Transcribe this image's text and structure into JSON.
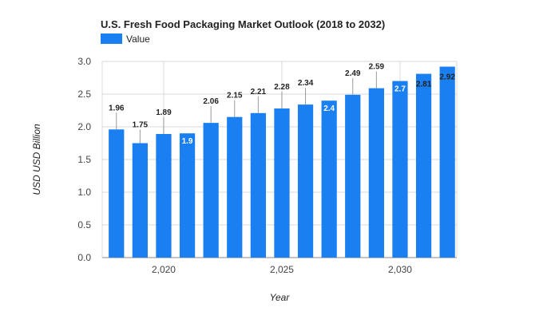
{
  "chart_data": {
    "type": "bar",
    "title": "U.S. Fresh Food Packaging Market Outlook (2018 to 2032)",
    "legend": {
      "placement": "top-left",
      "entries": [
        {
          "name": "Value",
          "color": "#1a7ff0"
        }
      ]
    },
    "xlabel": "Year",
    "ylabel": "USD USD Billion",
    "ylim": [
      0,
      3.0
    ],
    "yticks": [
      "0.0",
      "0.5",
      "1.0",
      "1.5",
      "2.0",
      "2.5",
      "3.0"
    ],
    "xlim": [
      2017.4,
      2032.4
    ],
    "xticks": [
      {
        "value": 2020,
        "label": "2,020"
      },
      {
        "value": 2025,
        "label": "2,025"
      },
      {
        "value": 2030,
        "label": "2,030"
      }
    ],
    "grid": true,
    "series": [
      {
        "name": "Value",
        "color": "#1a7ff0",
        "points": [
          {
            "x": 2018,
            "y": 1.96,
            "label": "1.96"
          },
          {
            "x": 2019,
            "y": 1.75,
            "label": "1.75"
          },
          {
            "x": 2020,
            "y": 1.89,
            "label": "1.89"
          },
          {
            "x": 2021,
            "y": 1.9,
            "label": "1.9"
          },
          {
            "x": 2022,
            "y": 2.06,
            "label": "2.06"
          },
          {
            "x": 2023,
            "y": 2.15,
            "label": "2.15"
          },
          {
            "x": 2024,
            "y": 2.21,
            "label": "2.21"
          },
          {
            "x": 2025,
            "y": 2.28,
            "label": "2.28"
          },
          {
            "x": 2026,
            "y": 2.34,
            "label": "2.34"
          },
          {
            "x": 2027,
            "y": 2.4,
            "label": "2.4"
          },
          {
            "x": 2028,
            "y": 2.49,
            "label": "2.49"
          },
          {
            "x": 2029,
            "y": 2.59,
            "label": "2.59"
          },
          {
            "x": 2030,
            "y": 2.7,
            "label": "2.7"
          },
          {
            "x": 2031,
            "y": 2.81,
            "label": "2.81"
          },
          {
            "x": 2032,
            "y": 2.92,
            "label": "2.92"
          }
        ]
      }
    ]
  }
}
